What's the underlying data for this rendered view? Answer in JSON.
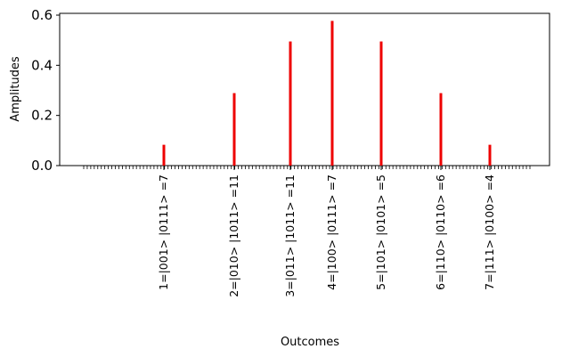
{
  "chart_data": {
    "type": "bar",
    "title": "",
    "xlabel": "Outcomes",
    "ylabel": "Amplitudes",
    "ylim": [
      0,
      0.6
    ],
    "yticks": [
      "0.0",
      "0.2",
      "0.4",
      "0.6"
    ],
    "bar_color": "#ee0000",
    "categories": [
      "1=|001> |0111> =7",
      "2=|010> |1011> =11",
      "3=|011> |1011> =11",
      "4=|100> |0111> =7",
      "5=|101> |0101> =5",
      "6=|110> |0110> =6",
      "7=|111> |0100> =4"
    ],
    "values": [
      0.083,
      0.289,
      0.495,
      0.577,
      0.495,
      0.289,
      0.083
    ]
  }
}
